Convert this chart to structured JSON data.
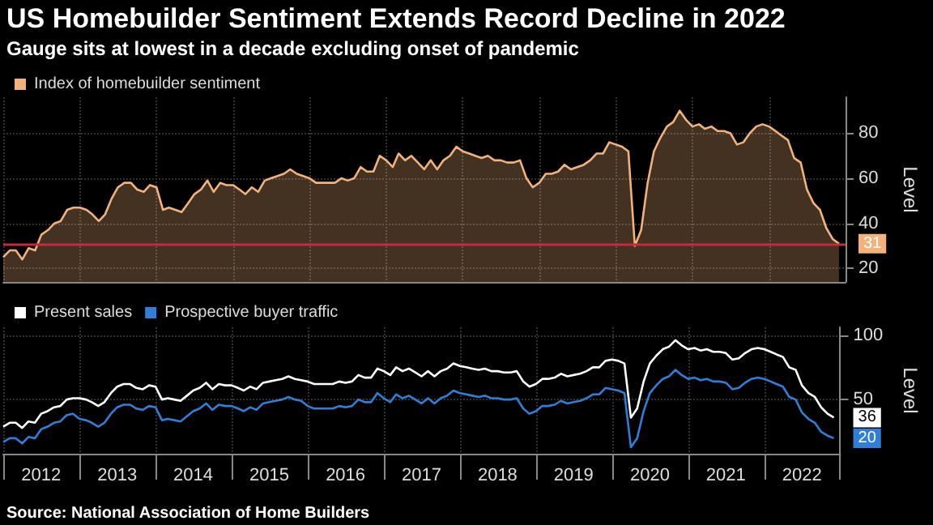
{
  "chart_data": [
    {
      "type": "area",
      "title": "US Homebuilder Sentiment Extends Record Decline in 2022",
      "subtitle": "Gauge sits at lowest in a decade excluding onset of pandemic",
      "ylabel": "Level",
      "legend": "top left",
      "grid": true,
      "tick_labels": "y",
      "x": [
        "2012-01",
        "2012-02",
        "2012-03",
        "2012-04",
        "2012-05",
        "2012-06",
        "2012-07",
        "2012-08",
        "2012-09",
        "2012-10",
        "2012-11",
        "2012-12",
        "2013-01",
        "2013-02",
        "2013-03",
        "2013-04",
        "2013-05",
        "2013-06",
        "2013-07",
        "2013-08",
        "2013-09",
        "2013-10",
        "2013-11",
        "2013-12",
        "2014-01",
        "2014-02",
        "2014-03",
        "2014-04",
        "2014-05",
        "2014-06",
        "2014-07",
        "2014-08",
        "2014-09",
        "2014-10",
        "2014-11",
        "2014-12",
        "2015-01",
        "2015-02",
        "2015-03",
        "2015-04",
        "2015-05",
        "2015-06",
        "2015-07",
        "2015-08",
        "2015-09",
        "2015-10",
        "2015-11",
        "2015-12",
        "2016-01",
        "2016-02",
        "2016-03",
        "2016-04",
        "2016-05",
        "2016-06",
        "2016-07",
        "2016-08",
        "2016-09",
        "2016-10",
        "2016-11",
        "2016-12",
        "2017-01",
        "2017-02",
        "2017-03",
        "2017-04",
        "2017-05",
        "2017-06",
        "2017-07",
        "2017-08",
        "2017-09",
        "2017-10",
        "2017-11",
        "2017-12",
        "2018-01",
        "2018-02",
        "2018-03",
        "2018-04",
        "2018-05",
        "2018-06",
        "2018-07",
        "2018-08",
        "2018-09",
        "2018-10",
        "2018-11",
        "2018-12",
        "2019-01",
        "2019-02",
        "2019-03",
        "2019-04",
        "2019-05",
        "2019-06",
        "2019-07",
        "2019-08",
        "2019-09",
        "2019-10",
        "2019-11",
        "2019-12",
        "2020-01",
        "2020-02",
        "2020-03",
        "2020-04",
        "2020-05",
        "2020-06",
        "2020-07",
        "2020-08",
        "2020-09",
        "2020-10",
        "2020-11",
        "2020-12",
        "2021-01",
        "2021-02",
        "2021-03",
        "2021-04",
        "2021-05",
        "2021-06",
        "2021-07",
        "2021-08",
        "2021-09",
        "2021-10",
        "2021-11",
        "2021-12",
        "2022-01",
        "2022-02",
        "2022-03",
        "2022-04",
        "2022-05",
        "2022-06",
        "2022-07",
        "2022-08",
        "2022-09",
        "2022-10",
        "2022-11",
        "2022-12"
      ],
      "xlim": [
        "2012-01",
        "2023-01"
      ],
      "ylim": [
        14,
        96
      ],
      "yticks": [
        20,
        40,
        60,
        80
      ],
      "ref_lines": [
        {
          "axis": "y",
          "value": 31,
          "color": "#c8283c",
          "line_style": "solid"
        }
      ],
      "annotations": [
        {
          "text": "31",
          "x": "2022-12",
          "y": 31
        }
      ],
      "series": [
        {
          "name": "Index of homebuilder sentiment",
          "color": "#f2b27a",
          "values": [
            25,
            28,
            28,
            24,
            29,
            28,
            35,
            37,
            40,
            41,
            46,
            47,
            47,
            46,
            44,
            41,
            44,
            51,
            56,
            58,
            58,
            55,
            54,
            57,
            56,
            46,
            47,
            46,
            45,
            49,
            53,
            55,
            59,
            54,
            58,
            57,
            57,
            55,
            53,
            56,
            54,
            59,
            60,
            61,
            62,
            64,
            62,
            61,
            60,
            58,
            58,
            58,
            58,
            60,
            59,
            60,
            65,
            63,
            63,
            70,
            68,
            65,
            71,
            68,
            70,
            67,
            64,
            68,
            64,
            68,
            70,
            74,
            72,
            71,
            70,
            69,
            70,
            68,
            68,
            67,
            67,
            68,
            60,
            56,
            58,
            62,
            62,
            63,
            66,
            64,
            65,
            66,
            68,
            71,
            71,
            76,
            75,
            74,
            72,
            30,
            37,
            58,
            72,
            78,
            83,
            85,
            90,
            86,
            83,
            84,
            82,
            83,
            81,
            81,
            80,
            75,
            76,
            80,
            83,
            84,
            83,
            81,
            79,
            77,
            69,
            67,
            55,
            49,
            46,
            38,
            33,
            31
          ]
        }
      ]
    },
    {
      "type": "line",
      "ylabel": "Level",
      "legend": "top left",
      "grid": true,
      "annotations": [
        "Source: National Association of Home Builders",
        {
          "text": "36",
          "x": "2022-12",
          "y": 36
        },
        {
          "text": "20",
          "x": "2022-12",
          "y": 20
        }
      ],
      "x": [
        "2012-01",
        "2012-02",
        "2012-03",
        "2012-04",
        "2012-05",
        "2012-06",
        "2012-07",
        "2012-08",
        "2012-09",
        "2012-10",
        "2012-11",
        "2012-12",
        "2013-01",
        "2013-02",
        "2013-03",
        "2013-04",
        "2013-05",
        "2013-06",
        "2013-07",
        "2013-08",
        "2013-09",
        "2013-10",
        "2013-11",
        "2013-12",
        "2014-01",
        "2014-02",
        "2014-03",
        "2014-04",
        "2014-05",
        "2014-06",
        "2014-07",
        "2014-08",
        "2014-09",
        "2014-10",
        "2014-11",
        "2014-12",
        "2015-01",
        "2015-02",
        "2015-03",
        "2015-04",
        "2015-05",
        "2015-06",
        "2015-07",
        "2015-08",
        "2015-09",
        "2015-10",
        "2015-11",
        "2015-12",
        "2016-01",
        "2016-02",
        "2016-03",
        "2016-04",
        "2016-05",
        "2016-06",
        "2016-07",
        "2016-08",
        "2016-09",
        "2016-10",
        "2016-11",
        "2016-12",
        "2017-01",
        "2017-02",
        "2017-03",
        "2017-04",
        "2017-05",
        "2017-06",
        "2017-07",
        "2017-08",
        "2017-09",
        "2017-10",
        "2017-11",
        "2017-12",
        "2018-01",
        "2018-02",
        "2018-03",
        "2018-04",
        "2018-05",
        "2018-06",
        "2018-07",
        "2018-08",
        "2018-09",
        "2018-10",
        "2018-11",
        "2018-12",
        "2019-01",
        "2019-02",
        "2019-03",
        "2019-04",
        "2019-05",
        "2019-06",
        "2019-07",
        "2019-08",
        "2019-09",
        "2019-10",
        "2019-11",
        "2019-12",
        "2020-01",
        "2020-02",
        "2020-03",
        "2020-04",
        "2020-05",
        "2020-06",
        "2020-07",
        "2020-08",
        "2020-09",
        "2020-10",
        "2020-11",
        "2020-12",
        "2021-01",
        "2021-02",
        "2021-03",
        "2021-04",
        "2021-05",
        "2021-06",
        "2021-07",
        "2021-08",
        "2021-09",
        "2021-10",
        "2021-11",
        "2021-12",
        "2022-01",
        "2022-02",
        "2022-03",
        "2022-04",
        "2022-05",
        "2022-06",
        "2022-07",
        "2022-08",
        "2022-09",
        "2022-10",
        "2022-11",
        "2022-12"
      ],
      "xlim": [
        "2012-01",
        "2023-01"
      ],
      "xticks": [
        {
          "value": "2012-07",
          "label": "2012"
        },
        {
          "value": "2013-07",
          "label": "2013"
        },
        {
          "value": "2014-07",
          "label": "2014"
        },
        {
          "value": "2015-07",
          "label": "2015"
        },
        {
          "value": "2016-07",
          "label": "2016"
        },
        {
          "value": "2017-07",
          "label": "2017"
        },
        {
          "value": "2018-07",
          "label": "2018"
        },
        {
          "value": "2019-07",
          "label": "2019"
        },
        {
          "value": "2020-07",
          "label": "2020"
        },
        {
          "value": "2021-07",
          "label": "2021"
        },
        {
          "value": "2022-07",
          "label": "2022"
        }
      ],
      "ylim": [
        8,
        106
      ],
      "yticks": [
        50,
        100
      ],
      "series": [
        {
          "name": "Present sales",
          "color": "#ffffff",
          "values": [
            29,
            32,
            32,
            28,
            33,
            32,
            39,
            41,
            44,
            45,
            50,
            51,
            51,
            50,
            48,
            45,
            48,
            55,
            60,
            62,
            62,
            59,
            58,
            61,
            60,
            50,
            51,
            50,
            49,
            53,
            57,
            59,
            63,
            58,
            62,
            61,
            61,
            59,
            57,
            60,
            58,
            63,
            64,
            65,
            66,
            68,
            66,
            65,
            64,
            62,
            62,
            62,
            62,
            64,
            63,
            64,
            69,
            67,
            67,
            74,
            72,
            69,
            75,
            72,
            74,
            71,
            68,
            72,
            68,
            72,
            74,
            78,
            76,
            75,
            74,
            73,
            74,
            72,
            72,
            71,
            71,
            72,
            64,
            60,
            62,
            66,
            66,
            67,
            70,
            68,
            69,
            70,
            72,
            75,
            75,
            80,
            81,
            80,
            78,
            36,
            43,
            64,
            78,
            84,
            89,
            91,
            96,
            92,
            89,
            90,
            88,
            89,
            87,
            87,
            86,
            81,
            82,
            86,
            89,
            90,
            89,
            87,
            85,
            83,
            75,
            73,
            61,
            55,
            52,
            44,
            39,
            36
          ]
        },
        {
          "name": "Prospective buyer traffic",
          "color": "#2f7fd8",
          "values": [
            17,
            20,
            20,
            16,
            21,
            20,
            27,
            29,
            32,
            33,
            38,
            39,
            35,
            34,
            32,
            29,
            32,
            39,
            44,
            46,
            46,
            43,
            42,
            45,
            44,
            34,
            35,
            34,
            33,
            37,
            41,
            43,
            47,
            42,
            46,
            45,
            45,
            43,
            41,
            44,
            42,
            47,
            48,
            49,
            50,
            52,
            50,
            49,
            45,
            43,
            43,
            43,
            43,
            45,
            44,
            45,
            50,
            48,
            48,
            55,
            51,
            48,
            54,
            51,
            53,
            50,
            47,
            51,
            47,
            51,
            53,
            57,
            55,
            54,
            53,
            52,
            53,
            51,
            51,
            50,
            50,
            51,
            43,
            39,
            41,
            45,
            45,
            46,
            49,
            47,
            48,
            49,
            51,
            54,
            54,
            59,
            58,
            57,
            55,
            13,
            20,
            41,
            55,
            61,
            66,
            68,
            73,
            69,
            66,
            67,
            65,
            66,
            64,
            64,
            63,
            58,
            59,
            63,
            66,
            67,
            66,
            64,
            62,
            60,
            52,
            50,
            40,
            35,
            32,
            25,
            22,
            20
          ]
        }
      ]
    }
  ]
}
